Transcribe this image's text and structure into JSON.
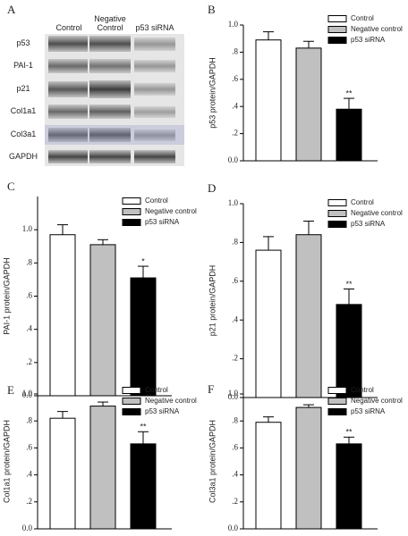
{
  "blot": {
    "panel": "A",
    "columns": [
      "Control",
      "Negative Control",
      "p53 siRNA"
    ],
    "rows": [
      "p53",
      "PAI-1",
      "p21",
      "Col1a1",
      "Col3a1",
      "GAPDH"
    ]
  },
  "chart_data": [
    {
      "type": "bar",
      "panel": "B",
      "ylabel": "p53 protein/GAPDH",
      "categories": [
        null
      ],
      "ylim": [
        0,
        1.0
      ],
      "yticks": [
        {
          "value": 0,
          "label": "0.0"
        },
        {
          "value": 0.2,
          "label": ".2"
        },
        {
          "value": 0.4,
          "label": ".4"
        },
        {
          "value": 0.6,
          "label": ".6"
        },
        {
          "value": 0.8,
          "label": ".8"
        },
        {
          "value": 1.0,
          "label": "1.0"
        }
      ],
      "series": [
        {
          "name": "Control",
          "color": "#ffffff",
          "values": [
            0.89
          ],
          "errors": [
            0.06
          ]
        },
        {
          "name": "Negative control",
          "color": "#c0c0c0",
          "values": [
            0.83
          ],
          "errors": [
            0.05
          ]
        },
        {
          "name": "p53 siRNA",
          "color": "#000000",
          "values": [
            0.38
          ],
          "errors": [
            0.08
          ],
          "annotations": [
            "**"
          ]
        }
      ]
    },
    {
      "type": "bar",
      "panel": "C",
      "ylabel": "PAI-1 protein/GAPDH",
      "categories": [
        null
      ],
      "ylim": [
        0,
        1.2
      ],
      "yticks": [
        {
          "value": 0,
          "label": "0.0"
        },
        {
          "value": 0.2,
          "label": ".2"
        },
        {
          "value": 0.4,
          "label": ".4"
        },
        {
          "value": 0.6,
          "label": ".6"
        },
        {
          "value": 0.8,
          "label": ".8"
        },
        {
          "value": 1.0,
          "label": "1.0"
        }
      ],
      "series": [
        {
          "name": "Control",
          "color": "#ffffff",
          "values": [
            0.97
          ],
          "errors": [
            0.06
          ]
        },
        {
          "name": "Negative control",
          "color": "#c0c0c0",
          "values": [
            0.91
          ],
          "errors": [
            0.03
          ]
        },
        {
          "name": "p53 siRNA",
          "color": "#000000",
          "values": [
            0.71
          ],
          "errors": [
            0.07
          ],
          "annotations": [
            "*"
          ]
        }
      ]
    },
    {
      "type": "bar",
      "panel": "D",
      "ylabel": "p21 protein/GAPDH",
      "categories": [
        null
      ],
      "ylim": [
        0,
        1.0
      ],
      "yticks": [
        {
          "value": 0,
          "label": "0.0"
        },
        {
          "value": 0.2,
          "label": ".2"
        },
        {
          "value": 0.4,
          "label": ".4"
        },
        {
          "value": 0.6,
          "label": ".6"
        },
        {
          "value": 0.8,
          "label": ".8"
        },
        {
          "value": 1.0,
          "label": "1.0"
        }
      ],
      "series": [
        {
          "name": "Control",
          "color": "#ffffff",
          "values": [
            0.76
          ],
          "errors": [
            0.07
          ]
        },
        {
          "name": "Negative control",
          "color": "#c0c0c0",
          "values": [
            0.84
          ],
          "errors": [
            0.07
          ]
        },
        {
          "name": "p53 siRNA",
          "color": "#000000",
          "values": [
            0.48
          ],
          "errors": [
            0.08
          ],
          "annotations": [
            "**"
          ]
        }
      ]
    },
    {
      "type": "bar",
      "panel": "E",
      "ylabel": "Col1a1 protein/GAPDH",
      "categories": [
        null
      ],
      "ylim": [
        0,
        1.0
      ],
      "yticks": [
        {
          "value": 0,
          "label": "0.0"
        },
        {
          "value": 0.2,
          "label": ".2"
        },
        {
          "value": 0.4,
          "label": ".4"
        },
        {
          "value": 0.6,
          "label": ".6"
        },
        {
          "value": 0.8,
          "label": ".8"
        },
        {
          "value": 1.0,
          "label": "1.0"
        }
      ],
      "series": [
        {
          "name": "Control",
          "color": "#ffffff",
          "values": [
            0.82
          ],
          "errors": [
            0.05
          ]
        },
        {
          "name": "Negative control",
          "color": "#c0c0c0",
          "values": [
            0.91
          ],
          "errors": [
            0.03
          ]
        },
        {
          "name": "p53 siRNA",
          "color": "#000000",
          "values": [
            0.63
          ],
          "errors": [
            0.09
          ],
          "annotations": [
            "**"
          ]
        }
      ]
    },
    {
      "type": "bar",
      "panel": "F",
      "ylabel": "Col3a1 protein/GAPDH",
      "categories": [
        null
      ],
      "ylim": [
        0,
        1.0
      ],
      "yticks": [
        {
          "value": 0,
          "label": "0.0"
        },
        {
          "value": 0.2,
          "label": ".2"
        },
        {
          "value": 0.4,
          "label": ".4"
        },
        {
          "value": 0.6,
          "label": ".6"
        },
        {
          "value": 0.8,
          "label": ".8"
        },
        {
          "value": 1.0,
          "label": "1.0"
        }
      ],
      "series": [
        {
          "name": "Control",
          "color": "#ffffff",
          "values": [
            0.79
          ],
          "errors": [
            0.04
          ]
        },
        {
          "name": "Negative control",
          "color": "#c0c0c0",
          "values": [
            0.9
          ],
          "errors": [
            0.02
          ]
        },
        {
          "name": "p53 siRNA",
          "color": "#000000",
          "values": [
            0.63
          ],
          "errors": [
            0.05
          ],
          "annotations": [
            "**"
          ]
        }
      ]
    }
  ]
}
